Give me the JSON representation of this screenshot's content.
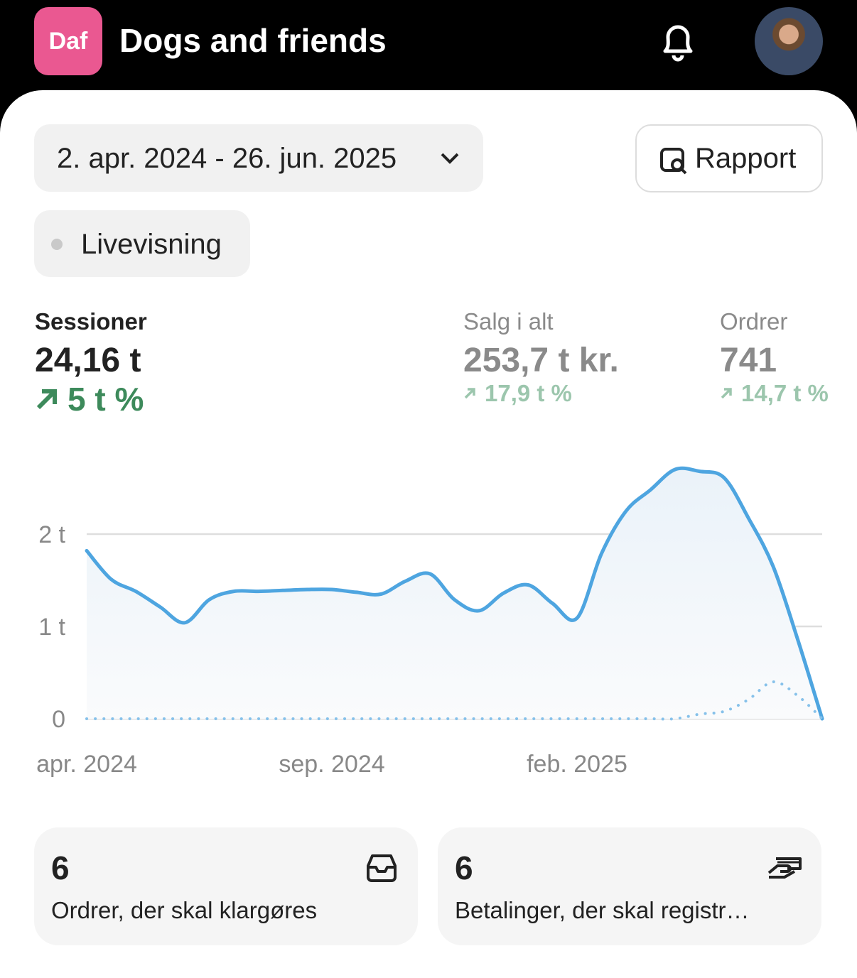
{
  "header": {
    "badge": "Daf",
    "title": "Dogs and friends"
  },
  "date_range": "2. apr. 2024 - 26. jun. 2025",
  "report_button": "Rapport",
  "live_button": "Livevisning",
  "metrics": [
    {
      "label": "Sessioner",
      "value": "24,16 t",
      "change": "5 t %"
    },
    {
      "label": "Salg i alt",
      "value": "253,7 t kr.",
      "change": "17,9 t %"
    },
    {
      "label": "Ordrer",
      "value": "741",
      "change": "14,7 t %"
    }
  ],
  "chart_data": {
    "type": "line",
    "categories": [
      "apr. 2024",
      null,
      null,
      null,
      null,
      null,
      null,
      null,
      null,
      null,
      "sep. 2024",
      null,
      null,
      null,
      null,
      null,
      null,
      null,
      null,
      null,
      "feb. 2025",
      null,
      null,
      null,
      null,
      null,
      null,
      null,
      null,
      null,
      null
    ],
    "series": [
      {
        "color": "#4ea5e0",
        "values": [
          1820,
          1510,
          1380,
          1210,
          1040,
          1290,
          1380,
          1380,
          1390,
          1400,
          1400,
          1370,
          1350,
          1490,
          1570,
          1290,
          1170,
          1360,
          1450,
          1250,
          1090,
          1790,
          2250,
          2480,
          2700,
          2680,
          2610,
          2170,
          1650,
          860,
          0
        ]
      },
      {
        "color": "#86c1ea",
        "style": "dotted",
        "values": [
          0,
          0,
          0,
          0,
          0,
          0,
          0,
          0,
          0,
          0,
          0,
          0,
          0,
          0,
          0,
          0,
          0,
          0,
          0,
          0,
          0,
          0,
          0,
          0,
          0,
          50,
          80,
          210,
          400,
          250,
          0
        ]
      }
    ],
    "fill_area": true,
    "ylim": [
      0,
      2800
    ],
    "yticks": [
      0,
      {
        "value": 1000,
        "label": "1 t"
      },
      {
        "value": 2000,
        "label": "2 t"
      }
    ],
    "grid": true
  },
  "cards": [
    {
      "value": "6",
      "label": "Ordrer, der skal klargøres"
    },
    {
      "value": "6",
      "label": "Betalinger, der skal registr…"
    }
  ]
}
